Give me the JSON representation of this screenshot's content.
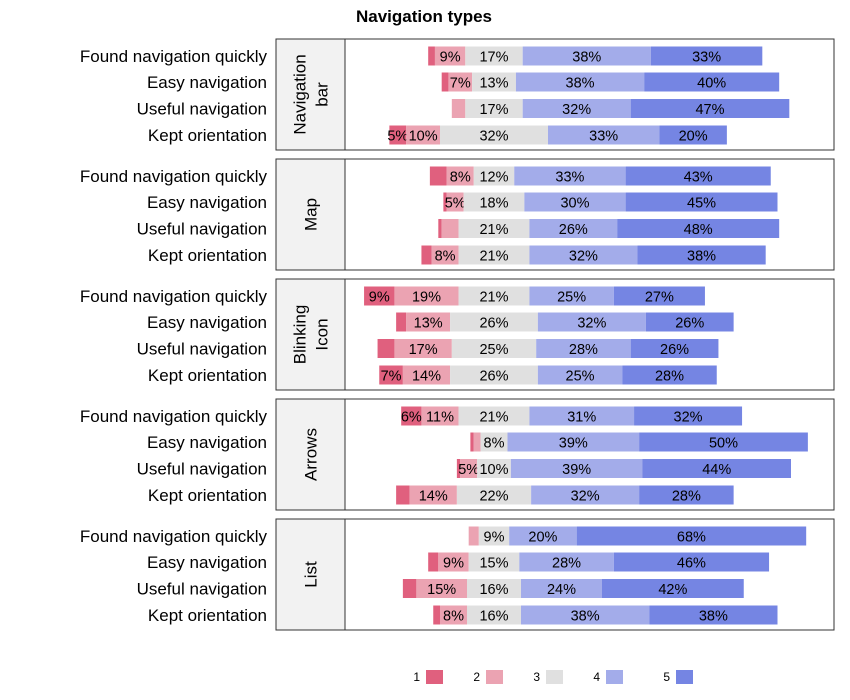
{
  "chart_data": {
    "type": "bar",
    "title": "Navigation types",
    "row_labels": [
      "Found navigation quickly",
      "Easy navigation",
      "Useful navigation",
      "Kept orientation"
    ],
    "legend": {
      "position": "bottom",
      "labels": [
        "1",
        "2",
        "3",
        "4",
        "5"
      ]
    },
    "colors": [
      "#e0607e",
      "#eba3b2",
      "#e0e0e0",
      "#a3acea",
      "#7585e3"
    ],
    "panels": [
      {
        "strip": [
          "Navigation",
          "bar"
        ],
        "rows": [
          {
            "values": [
              2,
              9,
              17,
              38,
              33
            ],
            "labels": [
              "",
              "9%",
              "17%",
              "38%",
              "33%"
            ]
          },
          {
            "values": [
              2,
              7,
              13,
              38,
              40
            ],
            "labels": [
              "",
              "7%",
              "13%",
              "38%",
              "40%"
            ]
          },
          {
            "values": [
              0,
              4,
              17,
              32,
              47
            ],
            "labels": [
              "",
              "",
              "17%",
              "32%",
              "47%"
            ]
          },
          {
            "values": [
              5,
              10,
              32,
              33,
              20
            ],
            "labels": [
              "5%",
              "10%",
              "32%",
              "33%",
              "20%"
            ]
          }
        ]
      },
      {
        "strip": [
          "Map"
        ],
        "rows": [
          {
            "values": [
              5,
              8,
              12,
              33,
              43
            ],
            "labels": [
              "",
              "8%",
              "12%",
              "33%",
              "43%"
            ]
          },
          {
            "values": [
              1,
              5,
              18,
              30,
              45
            ],
            "labels": [
              "",
              "5%",
              "18%",
              "30%",
              "45%"
            ]
          },
          {
            "values": [
              1,
              5,
              21,
              26,
              48
            ],
            "labels": [
              "",
              "",
              "21%",
              "26%",
              "48%"
            ]
          },
          {
            "values": [
              3,
              8,
              21,
              32,
              38
            ],
            "labels": [
              "",
              "8%",
              "21%",
              "32%",
              "38%"
            ]
          }
        ]
      },
      {
        "strip": [
          "Blinking",
          "Icon"
        ],
        "rows": [
          {
            "values": [
              9,
              19,
              21,
              25,
              27
            ],
            "labels": [
              "9%",
              "19%",
              "21%",
              "25%",
              "27%"
            ]
          },
          {
            "values": [
              3,
              13,
              26,
              32,
              26
            ],
            "labels": [
              "",
              "13%",
              "26%",
              "32%",
              "26%"
            ]
          },
          {
            "values": [
              5,
              17,
              25,
              28,
              26
            ],
            "labels": [
              "",
              "17%",
              "25%",
              "28%",
              "26%"
            ]
          },
          {
            "values": [
              7,
              14,
              26,
              25,
              28
            ],
            "labels": [
              "7%",
              "14%",
              "26%",
              "25%",
              "28%"
            ]
          }
        ]
      },
      {
        "strip": [
          "Arrows"
        ],
        "rows": [
          {
            "values": [
              6,
              11,
              21,
              31,
              32
            ],
            "labels": [
              "6%",
              "11%",
              "21%",
              "31%",
              "32%"
            ]
          },
          {
            "values": [
              1,
              2,
              8,
              39,
              50
            ],
            "labels": [
              "",
              "",
              "8%",
              "39%",
              "50%"
            ]
          },
          {
            "values": [
              1,
              5,
              10,
              39,
              44
            ],
            "labels": [
              "",
              "5%",
              "10%",
              "39%",
              "44%"
            ]
          },
          {
            "values": [
              4,
              14,
              22,
              32,
              28
            ],
            "labels": [
              "",
              "14%",
              "22%",
              "32%",
              "28%"
            ]
          }
        ]
      },
      {
        "strip": [
          "List"
        ],
        "rows": [
          {
            "values": [
              0,
              3,
              9,
              20,
              68
            ],
            "labels": [
              "",
              "",
              "9%",
              "20%",
              "68%"
            ]
          },
          {
            "values": [
              3,
              9,
              15,
              28,
              46
            ],
            "labels": [
              "",
              "9%",
              "15%",
              "28%",
              "46%"
            ]
          },
          {
            "values": [
              4,
              15,
              16,
              24,
              42
            ],
            "labels": [
              "",
              "15%",
              "16%",
              "24%",
              "42%"
            ]
          },
          {
            "values": [
              2,
              8,
              16,
              38,
              38
            ],
            "labels": [
              "",
              "8%",
              "16%",
              "38%",
              "38%"
            ]
          }
        ]
      }
    ]
  }
}
